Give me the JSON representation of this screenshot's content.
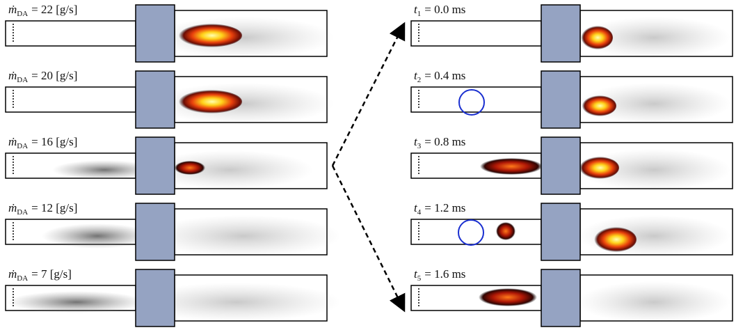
{
  "left_panels": [
    {
      "symbol": "ṁ",
      "subscript": "DA",
      "value": "= 22 [g/s]"
    },
    {
      "symbol": "ṁ",
      "subscript": "DA",
      "value": "= 20 [g/s]"
    },
    {
      "symbol": "ṁ",
      "subscript": "DA",
      "value": "= 16 [g/s]"
    },
    {
      "symbol": "ṁ",
      "subscript": "DA",
      "value": "= 12 [g/s]"
    },
    {
      "symbol": "ṁ",
      "subscript": "DA",
      "value": "= 7 [g/s]"
    }
  ],
  "right_panels": [
    {
      "symbol": "t",
      "subscript": "1",
      "value": "= 0.0 ms"
    },
    {
      "symbol": "t",
      "subscript": "2",
      "value": "= 0.4 ms"
    },
    {
      "symbol": "t",
      "subscript": "3",
      "value": "= 0.8 ms"
    },
    {
      "symbol": "t",
      "subscript": "4",
      "value": "= 1.2 ms"
    },
    {
      "symbol": "t",
      "subscript": "5",
      "value": "= 1.6 ms"
    }
  ]
}
